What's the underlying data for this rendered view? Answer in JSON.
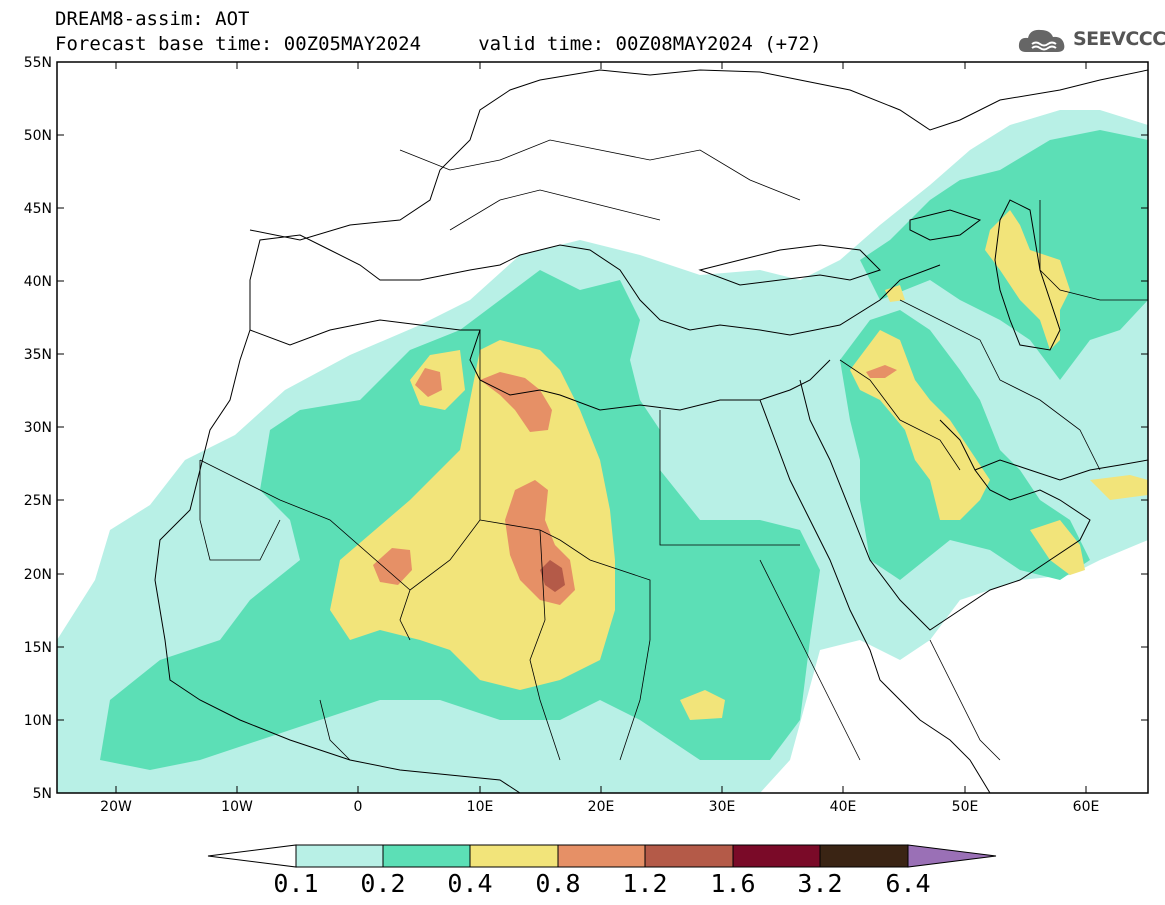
{
  "header": {
    "line1": "DREAM8-assim: AOT",
    "line2": "Forecast base time: 00Z05MAY2024     valid time: 00Z08MAY2024 (+72)"
  },
  "logo": {
    "text": "SEEVCCC",
    "icon": "cloud-icon"
  },
  "map": {
    "lon_range": [
      -25,
      65
    ],
    "lat_range": [
      5,
      55
    ],
    "lat_ticks": [
      "55N",
      "50N",
      "45N",
      "40N",
      "35N",
      "30N",
      "25N",
      "20N",
      "15N",
      "10N",
      "5N"
    ],
    "lon_ticks": [
      "20W",
      "10W",
      "0",
      "10E",
      "20E",
      "30E",
      "40E",
      "50E",
      "60E"
    ]
  },
  "colorbar": {
    "labels": [
      "0.1",
      "0.2",
      "0.4",
      "0.8",
      "1.2",
      "1.6",
      "3.2",
      "6.4"
    ],
    "colors": [
      "#ffffff",
      "#b8f0e6",
      "#5cdfb6",
      "#f2e47a",
      "#e69066",
      "#b45a48",
      "#7a0a28",
      "#3a2414",
      "#9a70b6"
    ]
  }
}
